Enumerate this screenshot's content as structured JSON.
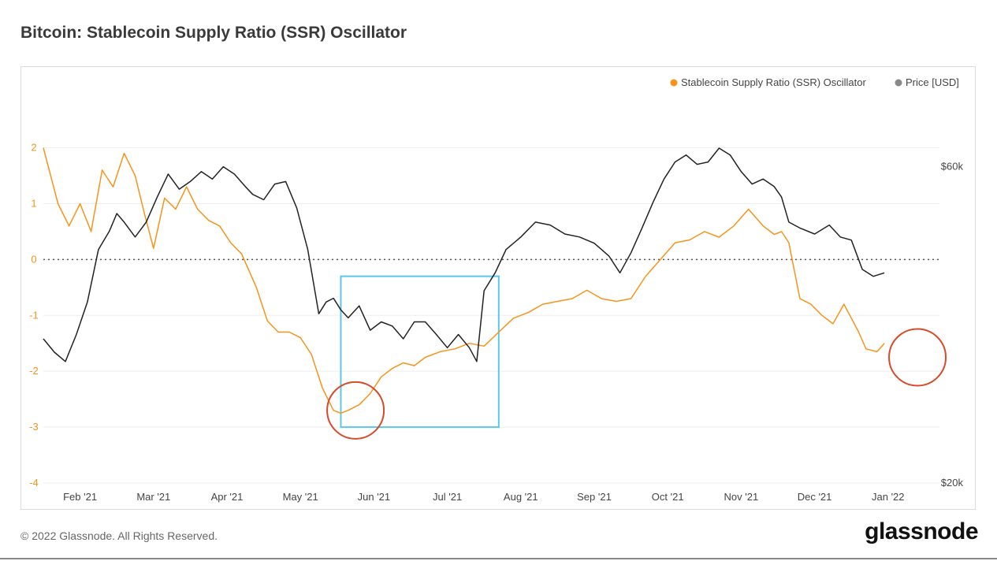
{
  "title": "Bitcoin: Stablecoin Supply Ratio (SSR) Oscillator",
  "footer": "© 2022 Glassnode. All Rights Reserved.",
  "brand": "glassnode",
  "colors": {
    "oscillator": "#f7931a",
    "price": "#222222",
    "highlight_box": "#5bc8e8",
    "circle": "#d84a2a",
    "zero_line": "#555555"
  },
  "chart_data": {
    "type": "line",
    "legend": {
      "placement": "top-right",
      "items": [
        {
          "label": "Stablecoin Supply Ratio (SSR) Oscillator",
          "color": "#f7931a"
        },
        {
          "label": "Price [USD]",
          "color": "#888888"
        }
      ]
    },
    "x_tick_labels": [
      "Feb '21",
      "Mar '21",
      "Apr '21",
      "May '21",
      "Jun '21",
      "Jul '21",
      "Aug '21",
      "Sep '21",
      "Oct '21",
      "Nov '21",
      "Dec '21",
      "Jan '22"
    ],
    "y_left": {
      "ticks": [
        "2",
        "1",
        "0",
        "-1",
        "-2",
        "-3",
        "-4"
      ],
      "ylim": [
        -4,
        2.6
      ]
    },
    "y_right": {
      "ticks": [
        "$60k",
        "$20k"
      ],
      "scale": "log",
      "ylim": [
        20000,
        72000
      ]
    },
    "x_range": [
      0,
      12.2
    ],
    "series": [
      {
        "name": "Stablecoin Supply Ratio (SSR) Oscillator",
        "axis": "left",
        "x": [
          0,
          0.2,
          0.35,
          0.5,
          0.65,
          0.8,
          0.95,
          1.1,
          1.25,
          1.38,
          1.5,
          1.65,
          1.8,
          1.95,
          2.1,
          2.25,
          2.4,
          2.55,
          2.7,
          2.9,
          3.05,
          3.2,
          3.35,
          3.5,
          3.65,
          3.8,
          3.95,
          4.05,
          4.15,
          4.3,
          4.45,
          4.6,
          4.75,
          4.9,
          5.05,
          5.2,
          5.4,
          5.6,
          5.8,
          6.0,
          6.2,
          6.4,
          6.6,
          6.8,
          7.0,
          7.2,
          7.4,
          7.6,
          7.8,
          8.0,
          8.2,
          8.4,
          8.6,
          8.8,
          9.0,
          9.2,
          9.4,
          9.6,
          9.8,
          9.95,
          10.05,
          10.15,
          10.3,
          10.45,
          10.6,
          10.75,
          10.9,
          11.0,
          11.1,
          11.2,
          11.35,
          11.45
        ],
        "y": [
          2.0,
          1.0,
          0.6,
          1.0,
          0.5,
          1.6,
          1.3,
          1.9,
          1.5,
          0.8,
          0.2,
          1.1,
          0.9,
          1.3,
          0.9,
          0.7,
          0.6,
          0.3,
          0.1,
          -0.5,
          -1.1,
          -1.3,
          -1.3,
          -1.4,
          -1.7,
          -2.3,
          -2.7,
          -2.75,
          -2.7,
          -2.6,
          -2.4,
          -2.1,
          -1.95,
          -1.85,
          -1.9,
          -1.75,
          -1.65,
          -1.6,
          -1.5,
          -1.55,
          -1.3,
          -1.05,
          -0.95,
          -0.8,
          -0.75,
          -0.7,
          -0.55,
          -0.7,
          -0.75,
          -0.7,
          -0.3,
          0.0,
          0.3,
          0.35,
          0.5,
          0.4,
          0.6,
          0.9,
          0.6,
          0.45,
          0.5,
          0.3,
          -0.7,
          -0.8,
          -1.0,
          -1.15,
          -0.8,
          -1.05,
          -1.3,
          -1.6,
          -1.65,
          -1.5
        ]
      },
      {
        "name": "Price [USD]",
        "axis": "right",
        "x": [
          0,
          0.15,
          0.3,
          0.45,
          0.6,
          0.75,
          0.9,
          1.0,
          1.1,
          1.25,
          1.4,
          1.55,
          1.7,
          1.85,
          2.0,
          2.15,
          2.3,
          2.45,
          2.6,
          2.75,
          2.85,
          3.0,
          3.15,
          3.3,
          3.45,
          3.6,
          3.75,
          3.85,
          3.95,
          4.05,
          4.15,
          4.3,
          4.45,
          4.6,
          4.75,
          4.9,
          5.05,
          5.2,
          5.35,
          5.5,
          5.65,
          5.8,
          5.9,
          6.0,
          6.15,
          6.3,
          6.5,
          6.7,
          6.9,
          7.1,
          7.3,
          7.5,
          7.7,
          7.85,
          8.0,
          8.15,
          8.3,
          8.45,
          8.6,
          8.75,
          8.9,
          9.05,
          9.2,
          9.35,
          9.5,
          9.65,
          9.8,
          9.95,
          10.05,
          10.15,
          10.3,
          10.5,
          10.7,
          10.85,
          11.0,
          11.15,
          11.3,
          11.45
        ],
        "y": [
          33000,
          31500,
          30500,
          33500,
          37500,
          45000,
          48000,
          51000,
          49500,
          47000,
          49500,
          54000,
          58500,
          55500,
          57000,
          59000,
          57500,
          60000,
          58500,
          56000,
          54500,
          53500,
          56500,
          57000,
          52000,
          45000,
          36000,
          37500,
          38000,
          36500,
          35500,
          37000,
          34000,
          35000,
          34500,
          33000,
          35000,
          35000,
          33500,
          32000,
          33500,
          32000,
          30500,
          39000,
          41500,
          45000,
          47000,
          49500,
          49000,
          47500,
          47000,
          46000,
          44000,
          41500,
          44500,
          48500,
          53000,
          57500,
          61000,
          62500,
          60500,
          61000,
          64000,
          62500,
          59000,
          56500,
          57500,
          56000,
          54000,
          49500,
          48500,
          47500,
          49000,
          47000,
          46500,
          42000,
          41000,
          41500
        ]
      }
    ],
    "annotations": {
      "box": {
        "x": [
          4.05,
          6.2
        ],
        "y": [
          -3.0,
          -0.3
        ]
      },
      "circles": [
        {
          "x": 4.25,
          "y": -2.7
        },
        {
          "x": 11.9,
          "y": -1.75
        }
      ]
    }
  }
}
